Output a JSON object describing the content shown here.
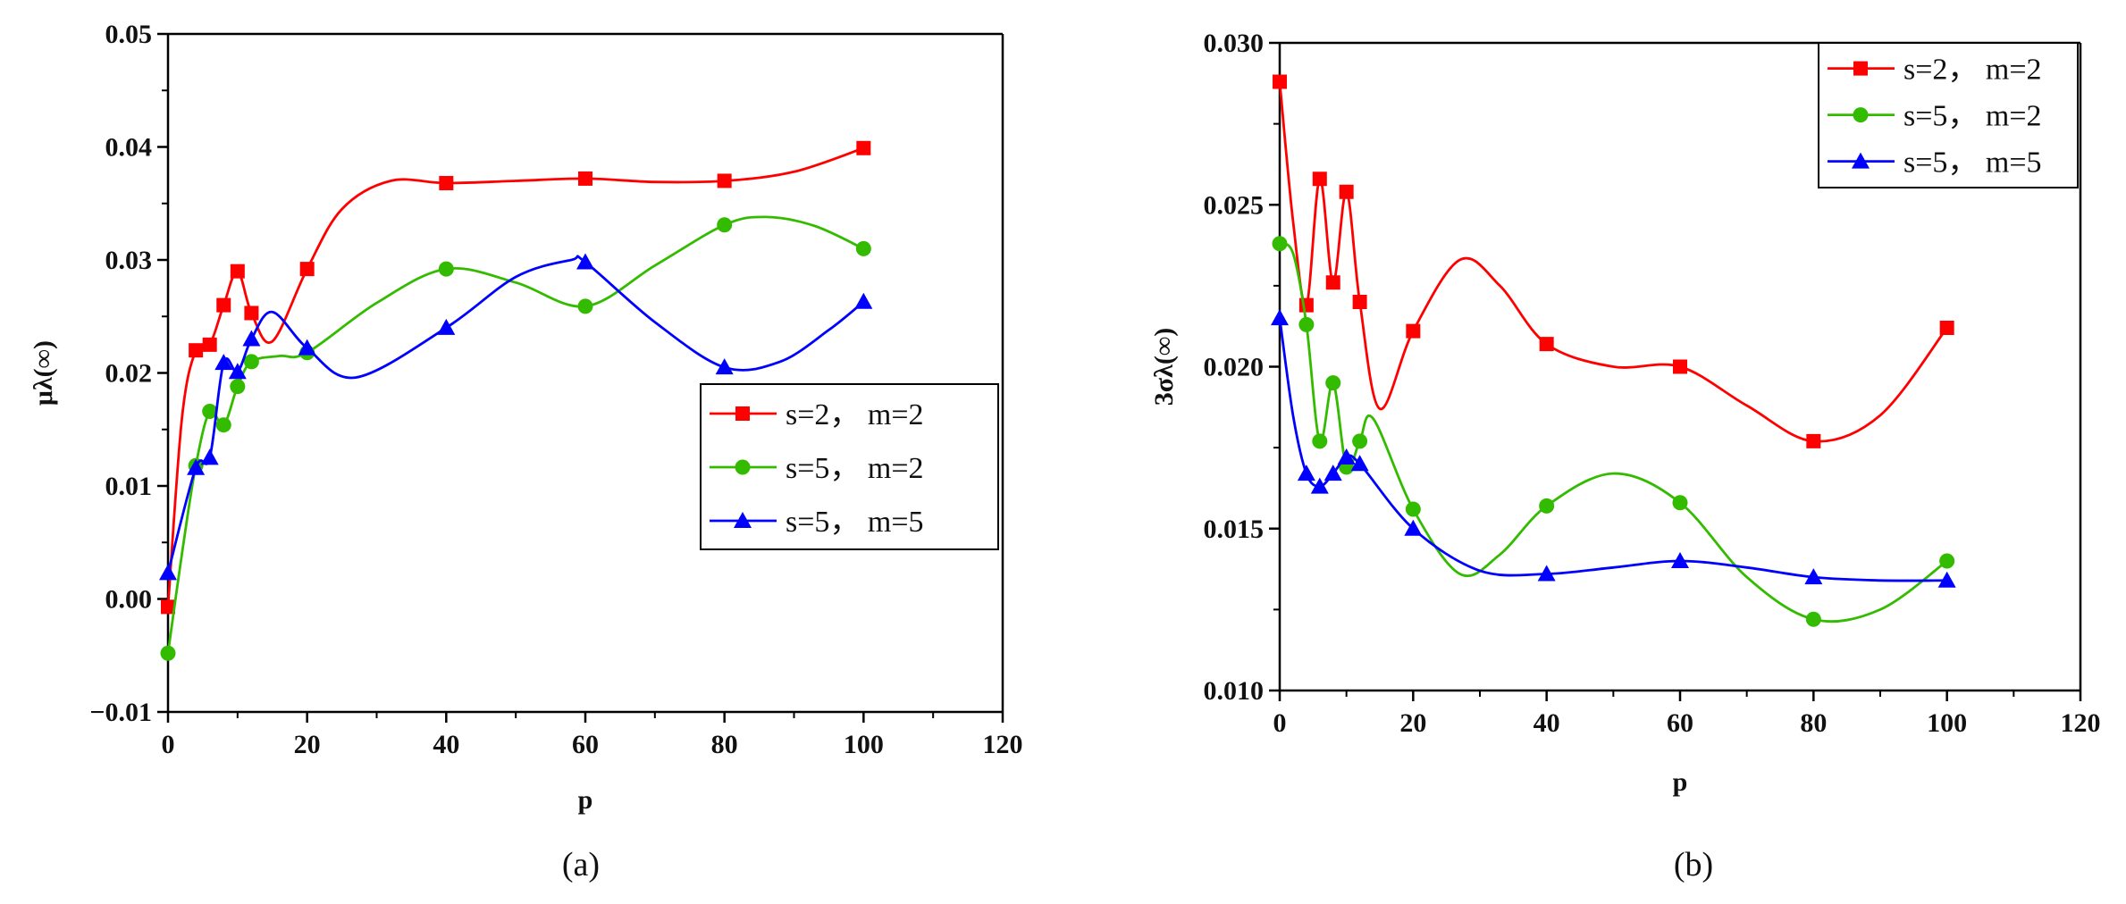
{
  "chart_data": [
    {
      "type": "line",
      "panel_label": "(a)",
      "xlabel": "p",
      "ylabel": "μλ(∞)",
      "xlim": [
        0,
        120
      ],
      "ylim": [
        -0.01,
        0.05
      ],
      "xticks": [
        "0",
        "20",
        "40",
        "60",
        "80",
        "100",
        "120"
      ],
      "yticks": [
        "−0.01",
        "0.00",
        "0.01",
        "0.02",
        "0.03",
        "0.04",
        "0.05"
      ],
      "legend_position": "center-right",
      "series": [
        {
          "name": "s=2， m=2",
          "color": "#ff0000",
          "marker": "square",
          "x": [
            0,
            4,
            6,
            8,
            10,
            12,
            20,
            40,
            60,
            80,
            100
          ],
          "y": [
            -0.0007,
            0.022,
            0.0225,
            0.026,
            0.029,
            0.0253,
            0.0292,
            0.0368,
            0.0372,
            0.037,
            0.0399
          ],
          "curve": [
            [
              0,
              -0.0007
            ],
            [
              2,
              0.016
            ],
            [
              4,
              0.022
            ],
            [
              6,
              0.0225
            ],
            [
              8,
              0.026
            ],
            [
              10,
              0.029
            ],
            [
              12,
              0.0253
            ],
            [
              15,
              0.0228
            ],
            [
              20,
              0.0292
            ],
            [
              25,
              0.0345
            ],
            [
              32,
              0.037
            ],
            [
              40,
              0.0368
            ],
            [
              50,
              0.037
            ],
            [
              60,
              0.0372
            ],
            [
              70,
              0.0369
            ],
            [
              80,
              0.037
            ],
            [
              90,
              0.0378
            ],
            [
              100,
              0.0399
            ]
          ]
        },
        {
          "name": "s=5， m=2",
          "color": "#33bb00",
          "marker": "circle",
          "x": [
            0,
            4,
            6,
            8,
            10,
            12,
            20,
            40,
            60,
            80,
            100
          ],
          "y": [
            -0.0048,
            0.0118,
            0.0166,
            0.0154,
            0.0188,
            0.021,
            0.0218,
            0.0292,
            0.0259,
            0.0331,
            0.031
          ],
          "curve": [
            [
              0,
              -0.0048
            ],
            [
              2,
              0.004
            ],
            [
              4,
              0.0118
            ],
            [
              6,
              0.0166
            ],
            [
              8,
              0.0154
            ],
            [
              10,
              0.0188
            ],
            [
              12,
              0.021
            ],
            [
              16,
              0.0215
            ],
            [
              20,
              0.0218
            ],
            [
              30,
              0.0262
            ],
            [
              40,
              0.0292
            ],
            [
              50,
              0.028
            ],
            [
              60,
              0.0259
            ],
            [
              70,
              0.0295
            ],
            [
              80,
              0.0331
            ],
            [
              86,
              0.0338
            ],
            [
              93,
              0.033
            ],
            [
              100,
              0.031
            ]
          ]
        },
        {
          "name": "s=5， m=5",
          "color": "#0000ff",
          "marker": "triangle",
          "x": [
            0,
            4,
            6,
            8,
            10,
            12,
            20,
            40,
            60,
            80,
            100
          ],
          "y": [
            0.0023,
            0.0116,
            0.0125,
            0.0209,
            0.0201,
            0.023,
            0.0222,
            0.024,
            0.0298,
            0.0205,
            0.0263
          ],
          "curve": [
            [
              0,
              0.0023
            ],
            [
              4,
              0.0116
            ],
            [
              6,
              0.0125
            ],
            [
              8,
              0.0209
            ],
            [
              10,
              0.0201
            ],
            [
              12,
              0.023
            ],
            [
              15,
              0.0254
            ],
            [
              20,
              0.0222
            ],
            [
              27,
              0.0196
            ],
            [
              40,
              0.024
            ],
            [
              50,
              0.0285
            ],
            [
              58,
              0.03
            ],
            [
              60,
              0.0298
            ],
            [
              70,
              0.0245
            ],
            [
              80,
              0.0205
            ],
            [
              88,
              0.021
            ],
            [
              95,
              0.0238
            ],
            [
              100,
              0.0263
            ]
          ]
        }
      ]
    },
    {
      "type": "line",
      "panel_label": "(b)",
      "xlabel": "p",
      "ylabel": "3σλ(∞)",
      "xlim": [
        0,
        120
      ],
      "ylim": [
        0.01,
        0.03
      ],
      "xticks": [
        "0",
        "20",
        "40",
        "60",
        "80",
        "100",
        "120"
      ],
      "yticks": [
        "0.010",
        "0.015",
        "0.020",
        "0.025",
        "0.030"
      ],
      "legend_position": "top-right",
      "series": [
        {
          "name": "s=2， m=2",
          "color": "#ff0000",
          "marker": "square",
          "x": [
            0,
            4,
            6,
            8,
            10,
            12,
            20,
            40,
            60,
            80,
            100
          ],
          "y": [
            0.0288,
            0.0219,
            0.0258,
            0.0226,
            0.0254,
            0.022,
            0.0211,
            0.0207,
            0.02,
            0.0177,
            0.0212
          ],
          "curve": [
            [
              0,
              0.0288
            ],
            [
              2,
              0.0245
            ],
            [
              4,
              0.0219
            ],
            [
              6,
              0.0258
            ],
            [
              8,
              0.0226
            ],
            [
              10,
              0.0254
            ],
            [
              12,
              0.022
            ],
            [
              15,
              0.0187
            ],
            [
              20,
              0.0211
            ],
            [
              27,
              0.0233
            ],
            [
              33,
              0.0225
            ],
            [
              40,
              0.0207
            ],
            [
              50,
              0.02
            ],
            [
              60,
              0.02
            ],
            [
              70,
              0.0188
            ],
            [
              80,
              0.0177
            ],
            [
              90,
              0.0185
            ],
            [
              100,
              0.0212
            ]
          ]
        },
        {
          "name": "s=5， m=2",
          "color": "#33bb00",
          "marker": "circle",
          "x": [
            0,
            4,
            6,
            8,
            10,
            12,
            20,
            40,
            60,
            80,
            100
          ],
          "y": [
            0.0238,
            0.0213,
            0.0177,
            0.0195,
            0.0169,
            0.0177,
            0.0156,
            0.0157,
            0.0158,
            0.0122,
            0.014
          ],
          "curve": [
            [
              0,
              0.0238
            ],
            [
              2,
              0.0235
            ],
            [
              4,
              0.0213
            ],
            [
              6,
              0.0177
            ],
            [
              8,
              0.0195
            ],
            [
              10,
              0.0169
            ],
            [
              12,
              0.0177
            ],
            [
              14,
              0.0184
            ],
            [
              20,
              0.0156
            ],
            [
              27,
              0.0136
            ],
            [
              33,
              0.0142
            ],
            [
              40,
              0.0157
            ],
            [
              50,
              0.0167
            ],
            [
              60,
              0.0158
            ],
            [
              70,
              0.0135
            ],
            [
              80,
              0.0122
            ],
            [
              90,
              0.0125
            ],
            [
              100,
              0.014
            ]
          ]
        },
        {
          "name": "s=5， m=5",
          "color": "#0000ff",
          "marker": "triangle",
          "x": [
            0,
            4,
            6,
            8,
            10,
            12,
            20,
            40,
            60,
            80,
            100
          ],
          "y": [
            0.0215,
            0.0167,
            0.0163,
            0.0167,
            0.0172,
            0.017,
            0.015,
            0.0136,
            0.014,
            0.0135,
            0.0134
          ],
          "curve": [
            [
              0,
              0.0215
            ],
            [
              2,
              0.0185
            ],
            [
              4,
              0.0167
            ],
            [
              6,
              0.0163
            ],
            [
              8,
              0.0167
            ],
            [
              10,
              0.0172
            ],
            [
              12,
              0.017
            ],
            [
              20,
              0.015
            ],
            [
              30,
              0.0137
            ],
            [
              40,
              0.0136
            ],
            [
              50,
              0.0138
            ],
            [
              60,
              0.014
            ],
            [
              70,
              0.0138
            ],
            [
              80,
              0.0135
            ],
            [
              90,
              0.0134
            ],
            [
              100,
              0.0134
            ]
          ]
        }
      ]
    }
  ]
}
